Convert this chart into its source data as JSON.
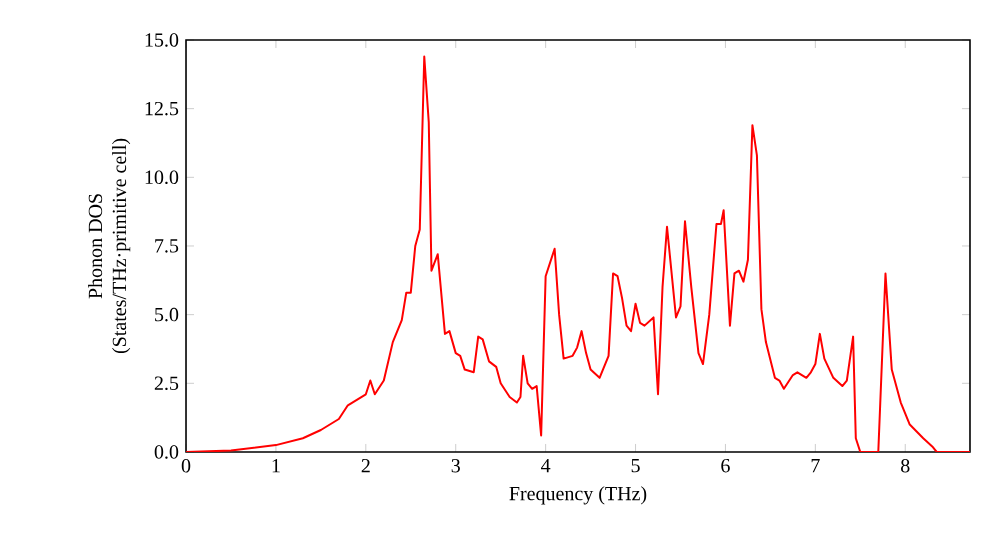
{
  "chart_data": {
    "type": "line",
    "xlabel": "Frequency (THz)",
    "ylabel": "Phonon DOS\n(States/THz·primitive cell)",
    "xlim": [
      0,
      8.72
    ],
    "ylim": [
      0,
      15
    ],
    "xticks": [
      0,
      1,
      2,
      3,
      4,
      5,
      6,
      7,
      8
    ],
    "yticks": [
      {
        "value": 0,
        "label": "0.0"
      },
      {
        "value": 2.5,
        "label": "2.5"
      },
      {
        "value": 5,
        "label": "5.0"
      },
      {
        "value": 7.5,
        "label": "7.5"
      },
      {
        "value": 10,
        "label": "10.0"
      },
      {
        "value": 12.5,
        "label": "12.5"
      },
      {
        "value": 15,
        "label": "15.0"
      }
    ],
    "series": [
      {
        "color": "#ff0000",
        "x": [
          0,
          0.5,
          1,
          1.3,
          1.5,
          1.7,
          1.8,
          1.9,
          2.0,
          2.05,
          2.1,
          2.2,
          2.3,
          2.4,
          2.45,
          2.5,
          2.55,
          2.6,
          2.65,
          2.7,
          2.73,
          2.8,
          2.88,
          2.93,
          3.0,
          3.05,
          3.1,
          3.2,
          3.25,
          3.3,
          3.37,
          3.45,
          3.5,
          3.6,
          3.68,
          3.72,
          3.75,
          3.8,
          3.85,
          3.9,
          3.95,
          4.0,
          4.1,
          4.15,
          4.2,
          4.3,
          4.35,
          4.4,
          4.45,
          4.5,
          4.6,
          4.7,
          4.75,
          4.8,
          4.85,
          4.9,
          4.95,
          5.0,
          5.05,
          5.1,
          5.2,
          5.25,
          5.3,
          5.35,
          5.45,
          5.5,
          5.55,
          5.62,
          5.7,
          5.75,
          5.82,
          5.9,
          5.95,
          5.98,
          6.05,
          6.1,
          6.15,
          6.2,
          6.25,
          6.3,
          6.35,
          6.4,
          6.45,
          6.55,
          6.6,
          6.65,
          6.75,
          6.8,
          6.9,
          6.95,
          7.0,
          7.05,
          7.1,
          7.2,
          7.3,
          7.35,
          7.42,
          7.45,
          7.5,
          7.7,
          7.78,
          7.85,
          7.95,
          8.05,
          8.2,
          8.3,
          8.35,
          8.72
        ],
        "values": [
          0,
          0.05,
          0.25,
          0.5,
          0.8,
          1.2,
          1.7,
          1.9,
          2.1,
          2.6,
          2.1,
          2.6,
          4.0,
          4.8,
          5.8,
          5.8,
          7.5,
          8.1,
          14.4,
          12.0,
          6.6,
          7.2,
          4.3,
          4.4,
          3.6,
          3.5,
          3.0,
          2.9,
          4.2,
          4.1,
          3.3,
          3.1,
          2.5,
          2.0,
          1.8,
          2.0,
          3.5,
          2.5,
          2.3,
          2.4,
          0.6,
          6.4,
          7.4,
          5.0,
          3.4,
          3.5,
          3.8,
          4.4,
          3.6,
          3.0,
          2.7,
          3.5,
          6.5,
          6.4,
          5.6,
          4.6,
          4.4,
          5.4,
          4.7,
          4.6,
          4.9,
          2.1,
          6.0,
          8.2,
          4.9,
          5.3,
          8.4,
          6.0,
          3.6,
          3.2,
          5.0,
          8.3,
          8.3,
          8.8,
          4.6,
          6.5,
          6.6,
          6.2,
          7.0,
          11.9,
          10.8,
          5.2,
          4.0,
          2.7,
          2.6,
          2.3,
          2.8,
          2.9,
          2.7,
          2.9,
          3.2,
          4.3,
          3.4,
          2.7,
          2.4,
          2.6,
          4.2,
          0.5,
          0,
          0,
          6.5,
          3.0,
          1.8,
          1.0,
          0.5,
          0.2,
          0,
          0
        ]
      }
    ]
  }
}
